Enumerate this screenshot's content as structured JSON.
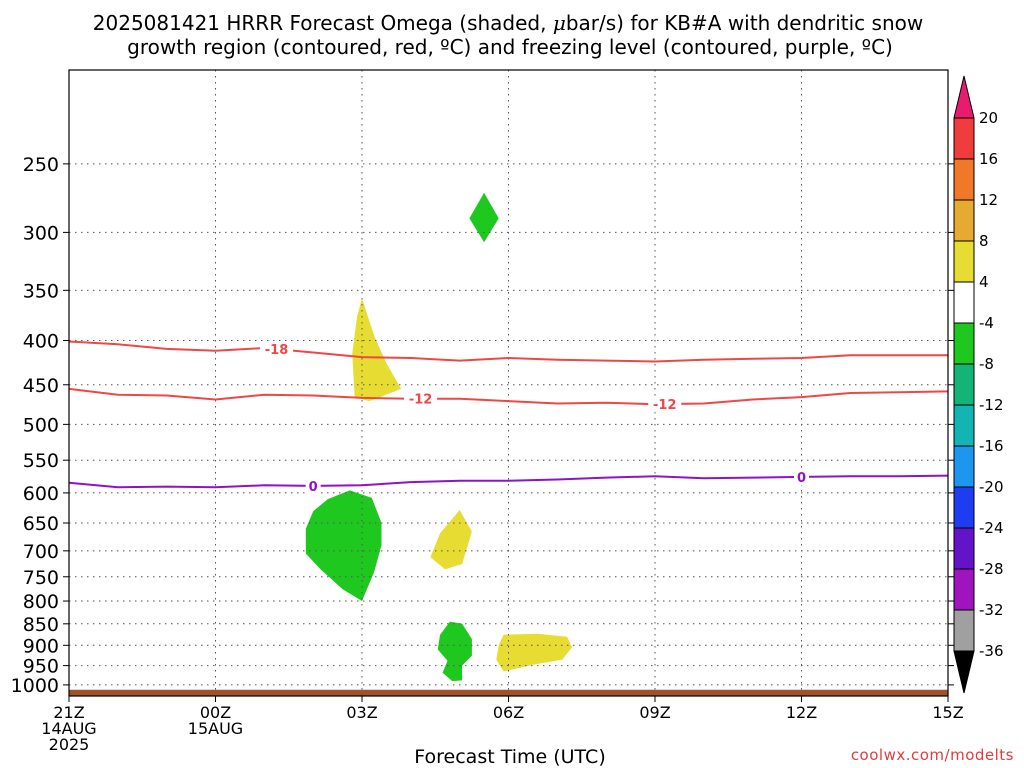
{
  "chart_data": {
    "type": "area",
    "title": {
      "line1_pre": "2025081421 HRRR Forecast Omega (shaded, ",
      "mu": "μ",
      "line1_post": "bar/s) for KB#A with dendritic snow",
      "line2": "growth region (contoured, red, ºC) and freezing level (contoured, purple, ºC)"
    },
    "xlabel": "Forecast Time (UTC)",
    "credit": "coolwx.com/modelts",
    "x_unit": "hours after 2025-08-14 21Z",
    "xlim": [
      0,
      18
    ],
    "x_ticks": [
      {
        "x": 0,
        "lines": [
          "21Z",
          "14AUG",
          "2025"
        ]
      },
      {
        "x": 3,
        "lines": [
          "00Z",
          "15AUG"
        ]
      },
      {
        "x": 6,
        "lines": [
          "03Z"
        ]
      },
      {
        "x": 9,
        "lines": [
          "06Z"
        ]
      },
      {
        "x": 12,
        "lines": [
          "09Z"
        ]
      },
      {
        "x": 15,
        "lines": [
          "12Z"
        ]
      },
      {
        "x": 18,
        "lines": [
          "15Z"
        ]
      }
    ],
    "y_unit": "hPa",
    "ylim": [
      1030,
      200
    ],
    "y_scale": "log",
    "y_ticks": [
      250,
      300,
      350,
      400,
      450,
      500,
      550,
      600,
      650,
      700,
      750,
      800,
      850,
      900,
      950,
      1000
    ],
    "grid": true,
    "colorbar": {
      "labels": [
        "20",
        "16",
        "12",
        "8",
        "4",
        "-4",
        "-8",
        "-12",
        "-16",
        "-20",
        "-24",
        "-28",
        "-32",
        "-36"
      ],
      "colors_top_to_bottom": [
        "#e81c6e",
        "#f03c3c",
        "#f07828",
        "#e6aa32",
        "#e6dc32",
        "#ffffff",
        "#1ec81e",
        "#14b478",
        "#14b4b4",
        "#1e96f0",
        "#1e3cf0",
        "#6414c8",
        "#a014be",
        "#a0a0a0",
        "#000000"
      ],
      "colors": {
        "yellow": "#e6dc32",
        "green": "#1ec81e"
      }
    },
    "regions": [
      {
        "color": "green",
        "points": [
          [
            8.5,
            270
          ],
          [
            8.8,
            289
          ],
          [
            8.5,
            308
          ],
          [
            8.2,
            289
          ]
        ]
      },
      {
        "color": "yellow",
        "points": [
          [
            6.0,
            358
          ],
          [
            6.25,
            395
          ],
          [
            6.5,
            425
          ],
          [
            6.8,
            455
          ],
          [
            6.15,
            470
          ],
          [
            5.85,
            465
          ],
          [
            5.8,
            415
          ],
          [
            5.9,
            375
          ]
        ]
      },
      {
        "color": "green",
        "points": [
          [
            5.3,
            610
          ],
          [
            5.75,
            596
          ],
          [
            6.2,
            608
          ],
          [
            6.4,
            650
          ],
          [
            6.4,
            690
          ],
          [
            6.25,
            740
          ],
          [
            6.0,
            800
          ],
          [
            5.6,
            775
          ],
          [
            5.15,
            735
          ],
          [
            4.85,
            705
          ],
          [
            4.85,
            660
          ],
          [
            5.0,
            630
          ]
        ]
      },
      {
        "color": "yellow",
        "points": [
          [
            8.0,
            628
          ],
          [
            8.25,
            665
          ],
          [
            8.05,
            725
          ],
          [
            7.7,
            735
          ],
          [
            7.4,
            712
          ],
          [
            7.6,
            668
          ]
        ]
      },
      {
        "color": "green",
        "points": [
          [
            7.8,
            845
          ],
          [
            8.05,
            850
          ],
          [
            8.25,
            885
          ],
          [
            8.25,
            925
          ],
          [
            8.05,
            950
          ],
          [
            8.05,
            988
          ],
          [
            7.85,
            990
          ],
          [
            7.65,
            968
          ],
          [
            7.75,
            938
          ],
          [
            7.55,
            910
          ],
          [
            7.6,
            875
          ]
        ]
      },
      {
        "color": "yellow",
        "points": [
          [
            8.9,
            875
          ],
          [
            9.6,
            873
          ],
          [
            10.2,
            880
          ],
          [
            10.3,
            905
          ],
          [
            10.1,
            935
          ],
          [
            9.5,
            948
          ],
          [
            8.9,
            965
          ],
          [
            8.75,
            935
          ],
          [
            8.8,
            900
          ]
        ]
      }
    ],
    "contours": [
      {
        "name": "dgz_-18",
        "label": "-18",
        "color": "#f04646",
        "label_x": 4.25,
        "points": [
          [
            0,
            401
          ],
          [
            1,
            404
          ],
          [
            2,
            409
          ],
          [
            3,
            411
          ],
          [
            4,
            408
          ],
          [
            5,
            413
          ],
          [
            6,
            418
          ],
          [
            7,
            419
          ],
          [
            8,
            422
          ],
          [
            9,
            419
          ],
          [
            10,
            421
          ],
          [
            11,
            422
          ],
          [
            12,
            423
          ],
          [
            13,
            421
          ],
          [
            14,
            420
          ],
          [
            15,
            419
          ],
          [
            16,
            416
          ],
          [
            17,
            416
          ],
          [
            18,
            416
          ]
        ]
      },
      {
        "name": "dgz_-12",
        "label": "-12",
        "color": "#f04646",
        "label_x": 7.2,
        "label_x2": 12.2,
        "points": [
          [
            0,
            455
          ],
          [
            1,
            462
          ],
          [
            2,
            463
          ],
          [
            3,
            468
          ],
          [
            4,
            462
          ],
          [
            5,
            463
          ],
          [
            6,
            466
          ],
          [
            7,
            467
          ],
          [
            8,
            467
          ],
          [
            9,
            470
          ],
          [
            10,
            473
          ],
          [
            11,
            472
          ],
          [
            12,
            474
          ],
          [
            13,
            473
          ],
          [
            14,
            468
          ],
          [
            15,
            465
          ],
          [
            16,
            460
          ],
          [
            17,
            459
          ],
          [
            18,
            458
          ]
        ]
      },
      {
        "name": "freezing_0",
        "label": "0",
        "color": "#8c14c8",
        "label_x": 5.0,
        "label_x2": 15.0,
        "points": [
          [
            0,
            584
          ],
          [
            1,
            591
          ],
          [
            2,
            590
          ],
          [
            3,
            591
          ],
          [
            4,
            588
          ],
          [
            5,
            589
          ],
          [
            6,
            588
          ],
          [
            7,
            583
          ],
          [
            8,
            581
          ],
          [
            9,
            581
          ],
          [
            10,
            579
          ],
          [
            11,
            576
          ],
          [
            12,
            574
          ],
          [
            13,
            577
          ],
          [
            14,
            576
          ],
          [
            15,
            575
          ],
          [
            16,
            574
          ],
          [
            17,
            574
          ],
          [
            18,
            573
          ]
        ]
      }
    ],
    "ground_band": {
      "color": "#a0522d",
      "from": 1013,
      "to": 1030
    }
  }
}
